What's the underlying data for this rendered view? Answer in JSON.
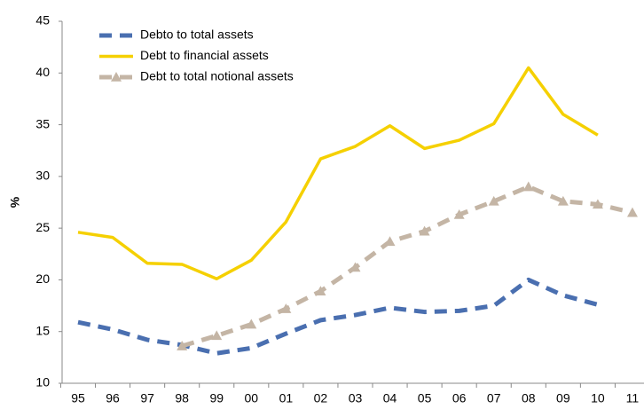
{
  "chart_data": {
    "type": "line",
    "y_label": "%",
    "categories": [
      "95",
      "96",
      "97",
      "98",
      "99",
      "00",
      "01",
      "02",
      "03",
      "04",
      "05",
      "06",
      "07",
      "08",
      "09",
      "10",
      "11"
    ],
    "series": [
      {
        "name": "Debto to total assets",
        "color": "#4a6fb0",
        "dashed": true,
        "marker": "none",
        "values": [
          15.9,
          15.2,
          14.2,
          13.7,
          12.9,
          13.4,
          14.8,
          16.1,
          16.6,
          17.3,
          16.9,
          17.0,
          17.5,
          20.0,
          18.5,
          17.6,
          null
        ]
      },
      {
        "name": "Debt to financial assets",
        "color": "#f5d000",
        "dashed": false,
        "marker": "none",
        "values": [
          24.6,
          24.1,
          21.6,
          21.5,
          20.1,
          21.9,
          25.6,
          31.7,
          32.9,
          34.9,
          32.7,
          33.5,
          35.1,
          40.5,
          36.0,
          34.0,
          null
        ]
      },
      {
        "name": "Debt to total notional assets",
        "color": "#c4b5a5",
        "dashed": true,
        "marker": "triangle",
        "values": [
          null,
          null,
          null,
          13.6,
          14.6,
          15.7,
          17.2,
          18.9,
          21.2,
          23.7,
          24.7,
          26.3,
          27.6,
          29.0,
          27.6,
          27.3,
          26.5
        ]
      }
    ],
    "ylim": [
      10,
      45
    ],
    "yticks": [
      10,
      15,
      20,
      25,
      30,
      35,
      40,
      45
    ],
    "grid": false,
    "legend": "top-left"
  }
}
